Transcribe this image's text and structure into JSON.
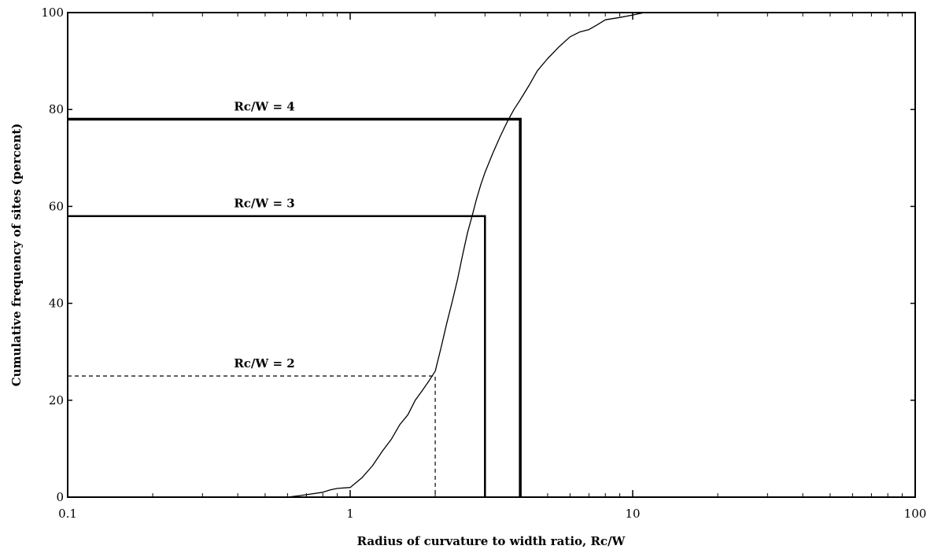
{
  "chart_data": {
    "type": "line",
    "xlabel": "Radius of curvature to width ratio, Rc/W",
    "ylabel": "Cumulative frequency of sites (percent)",
    "x_scale": "log",
    "xlim": [
      0.1,
      100
    ],
    "ylim": [
      0,
      100
    ],
    "x_ticks": [
      0.1,
      1,
      10,
      100
    ],
    "x_tick_labels": [
      "0.1",
      "1",
      "10",
      "100"
    ],
    "y_ticks": [
      0,
      20,
      40,
      60,
      80,
      100
    ],
    "y_tick_labels": [
      "0",
      "20",
      "40",
      "60",
      "80",
      "100"
    ],
    "grid": false,
    "series": [
      {
        "x": [
          0.6,
          0.7,
          0.8,
          0.85,
          0.9,
          1.0,
          1.1,
          1.2,
          1.3,
          1.4,
          1.5,
          1.6,
          1.7,
          1.8,
          1.9,
          2.0,
          2.1,
          2.2,
          2.3,
          2.4,
          2.5,
          2.6,
          2.7,
          2.8,
          2.9,
          3.0,
          3.2,
          3.4,
          3.6,
          3.8,
          4.0,
          4.3,
          4.6,
          5.0,
          5.5,
          6.0,
          6.5,
          7.0,
          7.5,
          8.0,
          9.0,
          10.0,
          11.0,
          12.0,
          100.0
        ],
        "y": [
          0.0,
          0.5,
          1.0,
          1.5,
          1.8,
          2.0,
          4.0,
          6.5,
          9.5,
          12.0,
          15.0,
          17.0,
          20.0,
          22.0,
          24.0,
          26.0,
          31.0,
          36.0,
          40.5,
          45.0,
          50.0,
          54.5,
          58.0,
          61.5,
          64.5,
          67.0,
          71.0,
          74.5,
          77.5,
          80.0,
          82.0,
          85.0,
          88.0,
          90.5,
          93.0,
          95.0,
          96.0,
          96.5,
          97.5,
          98.5,
          99.0,
          99.5,
          100.0,
          100.0,
          100.0
        ]
      }
    ],
    "reference_lines": [
      {
        "label": "Rc/W = 2",
        "x": 2,
        "y": 25,
        "style": "dashed"
      },
      {
        "label": "Rc/W = 3",
        "x": 3,
        "y": 58,
        "style": "solid"
      },
      {
        "label": "Rc/W = 4",
        "x": 4,
        "y": 78,
        "style": "bold"
      }
    ]
  }
}
